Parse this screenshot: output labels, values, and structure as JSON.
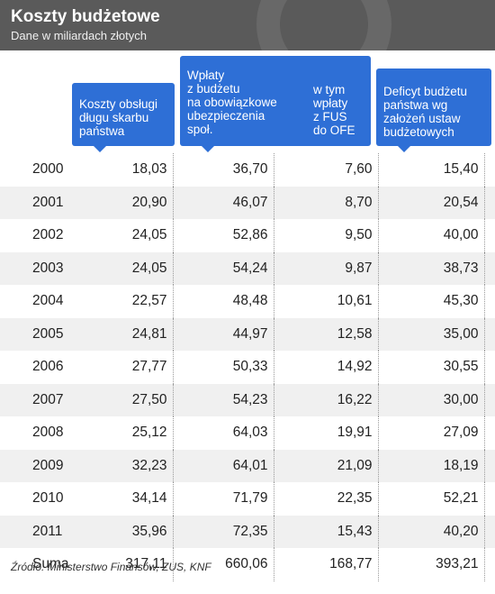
{
  "header": {
    "title": "Koszty budżetowe",
    "subtitle": "Dane w miliardach złotych"
  },
  "columns": {
    "debt_cost": "Koszty obsługi\ndługu skarbu\npaństwa",
    "contributions": "Wpłaty\nz budżetu\nna obowiązkowe\nubezpieczenia\nspoł.",
    "fus_ofe": "w tym\nwpłaty\nz FUS\ndo OFE",
    "deficit": "Deficyt budżetu\npaństwa wg\nzałożeń ustaw\nbudżetowych"
  },
  "colors": {
    "header_bg": "#5a5a5a",
    "accent_blue": "#2e6fd6",
    "row_alt": "#f0f0f0"
  },
  "rows": [
    {
      "year": "2000",
      "debt_cost": "18,03",
      "contributions": "36,70",
      "fus_ofe": "7,60",
      "deficit": "15,40"
    },
    {
      "year": "2001",
      "debt_cost": "20,90",
      "contributions": "46,07",
      "fus_ofe": "8,70",
      "deficit": "20,54"
    },
    {
      "year": "2002",
      "debt_cost": "24,05",
      "contributions": "52,86",
      "fus_ofe": "9,50",
      "deficit": "40,00"
    },
    {
      "year": "2003",
      "debt_cost": "24,05",
      "contributions": "54,24",
      "fus_ofe": "9,87",
      "deficit": "38,73"
    },
    {
      "year": "2004",
      "debt_cost": "22,57",
      "contributions": "48,48",
      "fus_ofe": "10,61",
      "deficit": "45,30"
    },
    {
      "year": "2005",
      "debt_cost": "24,81",
      "contributions": "44,97",
      "fus_ofe": "12,58",
      "deficit": "35,00"
    },
    {
      "year": "2006",
      "debt_cost": "27,77",
      "contributions": "50,33",
      "fus_ofe": "14,92",
      "deficit": "30,55"
    },
    {
      "year": "2007",
      "debt_cost": "27,50",
      "contributions": "54,23",
      "fus_ofe": "16,22",
      "deficit": "30,00"
    },
    {
      "year": "2008",
      "debt_cost": "25,12",
      "contributions": "64,03",
      "fus_ofe": "19,91",
      "deficit": "27,09"
    },
    {
      "year": "2009",
      "debt_cost": "32,23",
      "contributions": "64,01",
      "fus_ofe": "21,09",
      "deficit": "18,19"
    },
    {
      "year": "2010",
      "debt_cost": "34,14",
      "contributions": "71,79",
      "fus_ofe": "22,35",
      "deficit": "52,21"
    },
    {
      "year": "2011",
      "debt_cost": "35,96",
      "contributions": "72,35",
      "fus_ofe": "15,43",
      "deficit": "40,20"
    },
    {
      "year": "Suma",
      "debt_cost": "317,11",
      "contributions": "660,06",
      "fus_ofe": "168,77",
      "deficit": "393,21"
    }
  ],
  "source": "Źródło: Ministerstwo Finansów, ZUS, KNF"
}
